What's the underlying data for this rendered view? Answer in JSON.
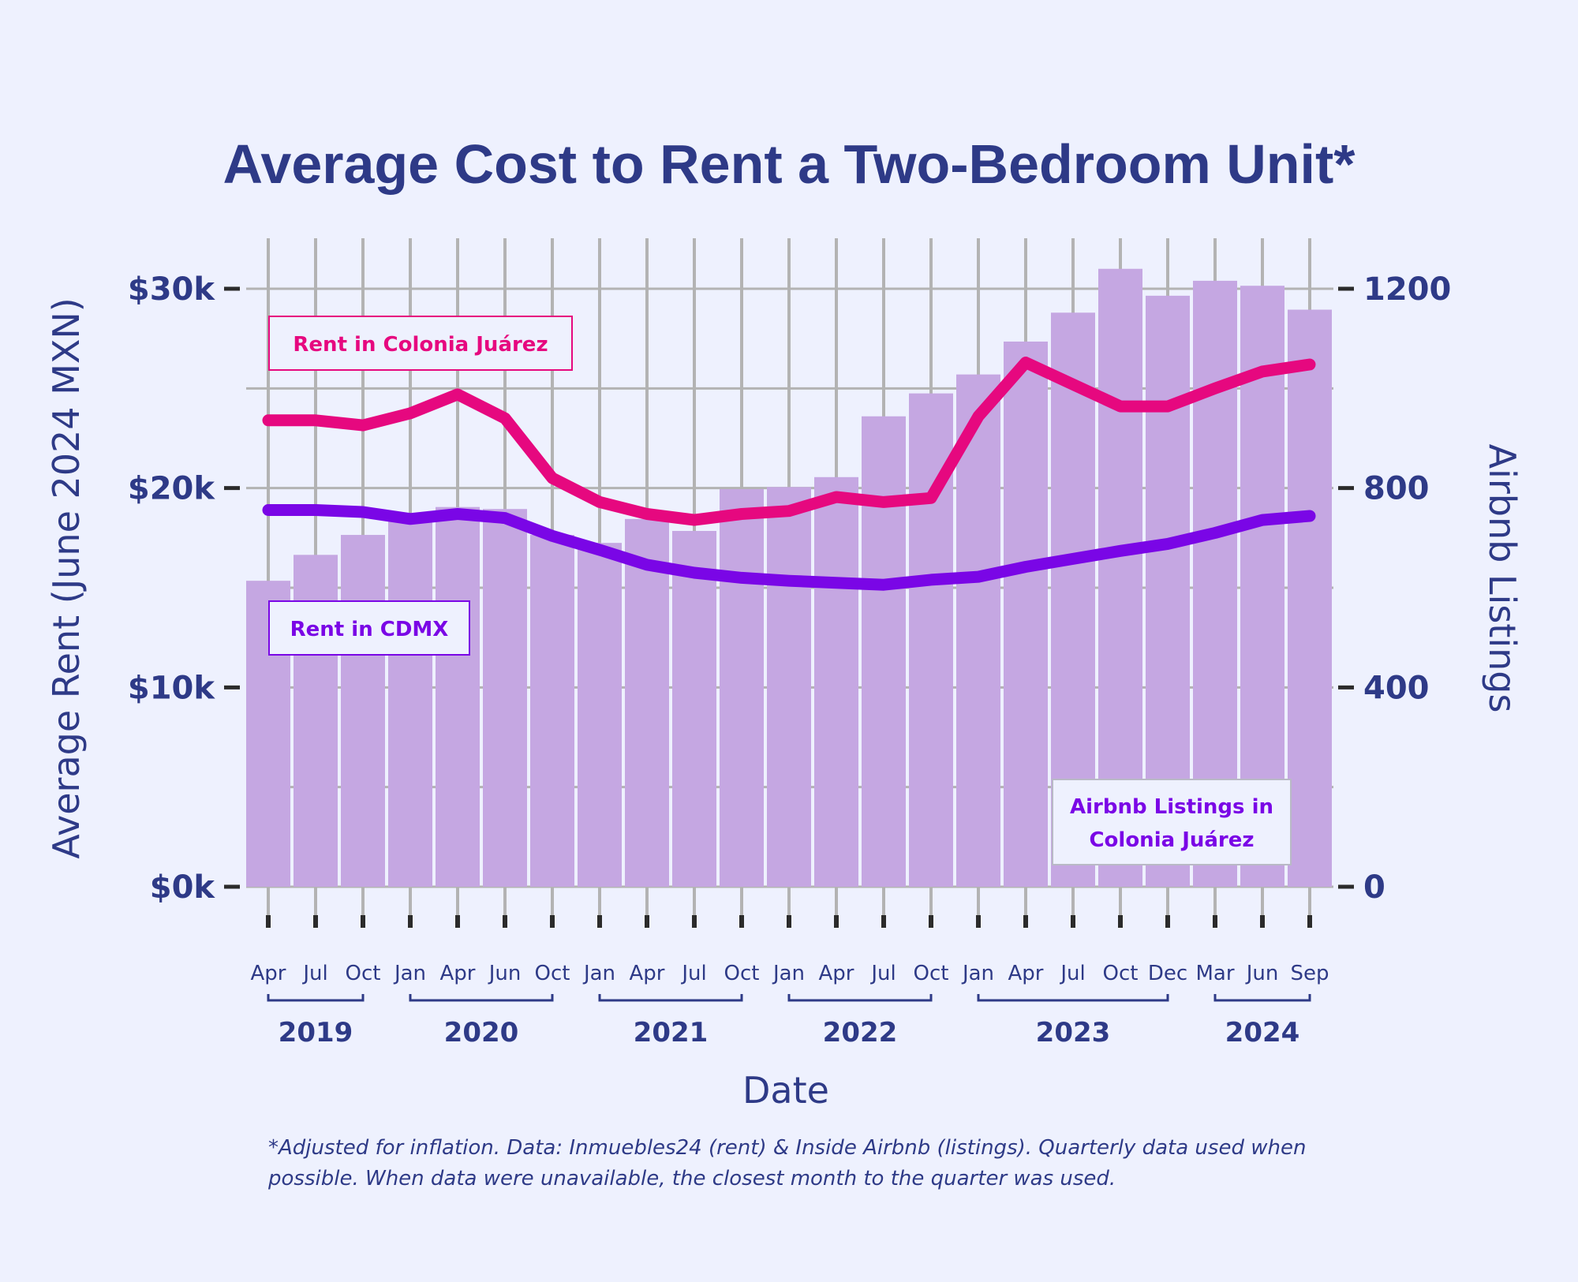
{
  "chart_data": {
    "type": "bar",
    "title": "Average Cost to Rent a Two-Bedroom Unit*",
    "xlabel": "Date",
    "ylabel": "Average Rent (June 2024 MXN)",
    "y2label": "Airbnb Listings",
    "ylim": [
      0,
      30000
    ],
    "y2lim": [
      0,
      1200
    ],
    "yticks": [
      "$0k",
      "$10k",
      "$20k",
      "$30k"
    ],
    "y2ticks": [
      "0",
      "400",
      "800",
      "1200"
    ],
    "categories": [
      "Apr 2019",
      "Jul 2019",
      "Oct 2019",
      "Jan 2020",
      "Apr 2020",
      "Jun 2020",
      "Oct 2020",
      "Jan 2021",
      "Apr 2021",
      "Jul 2021",
      "Oct 2021",
      "Jan 2022",
      "Apr 2022",
      "Jul 2022",
      "Oct 2022",
      "Jan 2023",
      "Apr 2023",
      "Jul 2023",
      "Oct 2023",
      "Dec 2023",
      "Mar 2024",
      "Jun 2024",
      "Sep 2024"
    ],
    "x_tick_labels": [
      "Apr",
      "Jul",
      "Oct",
      "Jan",
      "Apr",
      "Jun",
      "Oct",
      "Jan",
      "Apr",
      "Jul",
      "Oct",
      "Jan",
      "Apr",
      "Jul",
      "Oct",
      "Jan",
      "Apr",
      "Jul",
      "Oct",
      "Dec",
      "Mar",
      "Jun",
      "Sep"
    ],
    "years": [
      {
        "label": "2019",
        "from": 0,
        "to": 2
      },
      {
        "label": "2020",
        "from": 3,
        "to": 6
      },
      {
        "label": "2021",
        "from": 7,
        "to": 10
      },
      {
        "label": "2022",
        "from": 11,
        "to": 14
      },
      {
        "label": "2023",
        "from": 15,
        "to": 19
      },
      {
        "label": "2024",
        "from": 20,
        "to": 22
      }
    ],
    "series": [
      {
        "name": "Airbnb Listings in Colonia Juárez",
        "kind": "bar",
        "axis": "right",
        "color": "#c5a7e2",
        "values": [
          614,
          666,
          706,
          746,
          762,
          758,
          706,
          690,
          738,
          714,
          798,
          802,
          822,
          944,
          990,
          1028,
          1094,
          1152,
          1240,
          1186,
          1216,
          1206,
          1158
        ]
      },
      {
        "name": "Rent in Colonia Juárez",
        "kind": "line",
        "axis": "left",
        "color": "#e6087f",
        "values": [
          23400,
          23400,
          23150,
          23750,
          24700,
          23500,
          20500,
          19300,
          18700,
          18400,
          18700,
          18850,
          19550,
          19300,
          19500,
          23600,
          26300,
          25200,
          24100,
          24100,
          25000,
          25850,
          26200
        ]
      },
      {
        "name": "Rent in CDMX",
        "kind": "line",
        "axis": "left",
        "color": "#7a06e6",
        "values": [
          18900,
          18900,
          18800,
          18450,
          18700,
          18500,
          17600,
          16900,
          16150,
          15750,
          15500,
          15350,
          15250,
          15150,
          15400,
          15550,
          16050,
          16450,
          16850,
          17200,
          17750,
          18400,
          18600
        ]
      }
    ],
    "legend_labels": {
      "colonia_rent": "Rent in Colonia Juárez",
      "cdmx_rent": "Rent in CDMX",
      "airbnb_line1": "Airbnb Listings in",
      "airbnb_line2": "Colonia Juárez"
    },
    "grid": true,
    "note_line1": "*Adjusted for inflation. Data: Inmuebles24 (rent) & Inside Airbnb (listings). Quarterly data used when",
    "note_line2": "possible. When data were unavailable, the closest month to the quarter was used."
  }
}
